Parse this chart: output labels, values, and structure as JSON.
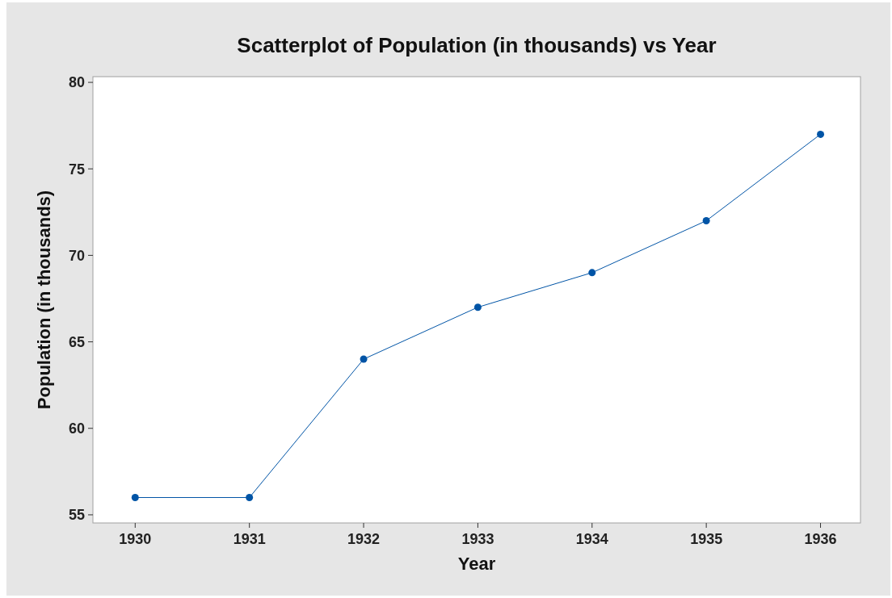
{
  "chart_data": {
    "type": "line",
    "title": "Scatterplot of Population (in thousands) vs Year",
    "xlabel": "Year",
    "ylabel": "Population (in thousands)",
    "x": [
      1930,
      1931,
      1932,
      1933,
      1934,
      1935,
      1936
    ],
    "series": [
      {
        "color": "#0054a6",
        "values": [
          56,
          56,
          64,
          67,
          69,
          72,
          77
        ]
      }
    ],
    "xlim": [
      1929.63,
      1936.35
    ],
    "xticks": [
      1930,
      1931,
      1932,
      1933,
      1934,
      1935,
      1936
    ],
    "ylim": [
      54.53,
      80.33
    ],
    "yticks": [
      55,
      60,
      65,
      70,
      75,
      80
    ],
    "marker": "circle",
    "line_style": "solid",
    "grid": false
  }
}
